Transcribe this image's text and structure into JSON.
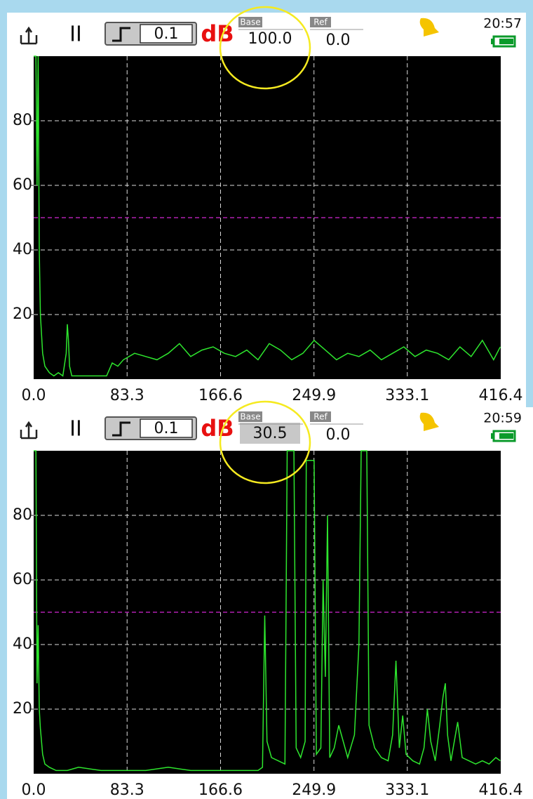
{
  "chart_data": [
    {
      "type": "line",
      "pause": "II",
      "step": "0.1",
      "unit": "dB",
      "base_label": "Base",
      "base": "100.0",
      "base_selected": false,
      "ref_label": "Ref",
      "ref": "0.0",
      "time": "20:57",
      "x": [
        0,
        2,
        3,
        4,
        5,
        6,
        8,
        10,
        14,
        18,
        22,
        26,
        29,
        30,
        31,
        32,
        34,
        38,
        45,
        55,
        65,
        70,
        75,
        80,
        90,
        100,
        110,
        120,
        130,
        140,
        150,
        160,
        170,
        180,
        190,
        200,
        210,
        220,
        230,
        240,
        250,
        260,
        270,
        280,
        290,
        300,
        310,
        320,
        330,
        340,
        350,
        360,
        370,
        380,
        390,
        400,
        410,
        416
      ],
      "values": [
        100,
        100,
        60,
        100,
        40,
        20,
        8,
        4,
        2,
        1,
        2,
        1,
        8,
        17,
        12,
        4,
        1,
        1,
        1,
        1,
        1,
        5,
        4,
        6,
        8,
        7,
        6,
        8,
        11,
        7,
        9,
        10,
        8,
        7,
        9,
        6,
        11,
        9,
        6,
        8,
        12,
        9,
        6,
        8,
        7,
        9,
        6,
        8,
        10,
        7,
        9,
        8,
        6,
        10,
        7,
        12,
        6,
        10
      ],
      "color": "#2ee62e",
      "threshold": 50,
      "threshold_color": "#b020b0",
      "xlim": [
        0,
        416.4
      ],
      "xticks": [
        {
          "value": 0,
          "label": "0.0"
        },
        83.3,
        166.6,
        249.9,
        333.1,
        416.4
      ],
      "ylim": [
        0,
        100
      ],
      "yticks": [
        20,
        40,
        60,
        80
      ],
      "grid": true
    },
    {
      "type": "line",
      "pause": "II",
      "step": "0.1",
      "unit": "dB",
      "base_label": "Base",
      "base": "30.5",
      "base_selected": true,
      "ref_label": "Ref",
      "ref": "0.0",
      "time": "20:59",
      "x": [
        0,
        2,
        3,
        4,
        5,
        6,
        8,
        10,
        14,
        20,
        30,
        40,
        60,
        80,
        100,
        120,
        140,
        160,
        180,
        200,
        204,
        206,
        208,
        212,
        218,
        224,
        226,
        232,
        234,
        238,
        242,
        243,
        250,
        252,
        256,
        258,
        260,
        262,
        264,
        268,
        272,
        276,
        280,
        286,
        290,
        292,
        297,
        299,
        304,
        310,
        316,
        320,
        323,
        326,
        329,
        332,
        338,
        344,
        348,
        351,
        354,
        358,
        362,
        365,
        367,
        369,
        372,
        378,
        382,
        388,
        394,
        400,
        406,
        412,
        416
      ],
      "values": [
        100,
        100,
        28,
        46,
        20,
        14,
        6,
        3,
        2,
        1,
        1,
        2,
        1,
        1,
        1,
        2,
        1,
        1,
        1,
        1,
        2,
        49,
        10,
        5,
        4,
        3,
        100,
        100,
        8,
        5,
        10,
        97,
        97,
        6,
        8,
        60,
        30,
        80,
        5,
        8,
        15,
        10,
        5,
        12,
        40,
        100,
        100,
        15,
        8,
        5,
        4,
        12,
        35,
        8,
        18,
        6,
        4,
        3,
        8,
        20,
        10,
        4,
        15,
        24,
        28,
        12,
        4,
        16,
        5,
        4,
        3,
        4,
        3,
        5,
        4
      ],
      "color": "#2ee62e",
      "threshold": 50,
      "threshold_color": "#b020b0",
      "xlim": [
        0,
        416.4
      ],
      "xticks": [
        {
          "value": 0,
          "label": "0.0"
        },
        83.3,
        166.6,
        249.9,
        333.1,
        416.4
      ],
      "ylim": [
        0,
        100
      ],
      "yticks": [
        20,
        40,
        60,
        80
      ],
      "grid": true
    }
  ]
}
